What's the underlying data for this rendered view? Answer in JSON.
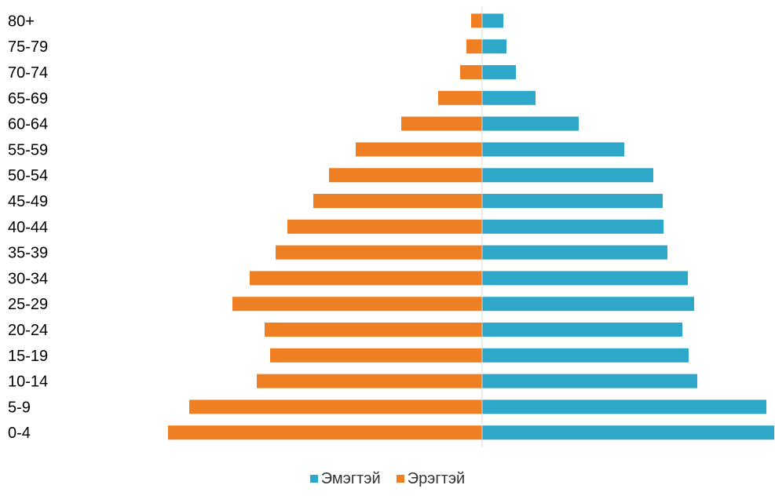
{
  "chart_data": {
    "type": "bar",
    "orientation": "horizontal",
    "layout": "population-pyramid",
    "categories": [
      "0-4",
      "5-9",
      "10-14",
      "15-19",
      "20-24",
      "25-29",
      "30-34",
      "35-39",
      "40-44",
      "45-49",
      "50-54",
      "55-59",
      "60-64",
      "65-69",
      "70-74",
      "75-79",
      "80+"
    ],
    "series": [
      {
        "name": "Эмэгтэй",
        "side": "right",
        "color": "#2FA7C8",
        "values": [
          372,
          362,
          274,
          263,
          255,
          270,
          262,
          236,
          231,
          230,
          218,
          181,
          123,
          68,
          43,
          31,
          27
        ]
      },
      {
        "name": "Эрэгтэй",
        "side": "left",
        "color": "#EE7F22",
        "values": [
          400,
          373,
          287,
          270,
          277,
          318,
          296,
          263,
          248,
          215,
          195,
          161,
          103,
          56,
          28,
          20,
          14
        ]
      }
    ],
    "grid": false,
    "legend_position": "bottom"
  }
}
